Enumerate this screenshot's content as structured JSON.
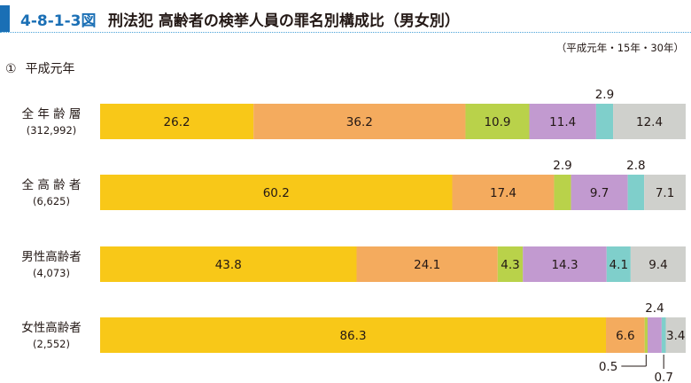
{
  "header": {
    "figure_number": "4-8-1-3図",
    "title": "刑法犯 高齢者の検挙人員の罪名別構成比（男女別）"
  },
  "note": "（平成元年・15年・30年）",
  "panel": {
    "marker": "①",
    "label": "平成元年"
  },
  "colors": {
    "accent": "#1a6fb5",
    "segments": [
      "#f8c818",
      "#f4ab5e",
      "#b9d24a",
      "#c29ad0",
      "#7fcfcb",
      "#cfd0cc"
    ]
  },
  "chart_data": {
    "type": "bar",
    "orientation": "horizontal",
    "stacked": true,
    "unit": "%",
    "categories": [
      {
        "name": "全 年 齢 層",
        "count": "(312,992)"
      },
      {
        "name": "全 高 齢 者",
        "count": "(6,625)"
      },
      {
        "name": "男性高齢者",
        "count": "(4,073)"
      },
      {
        "name": "女性高齢者",
        "count": "(2,552)"
      }
    ],
    "segment_values": [
      [
        26.2,
        36.2,
        10.9,
        11.4,
        2.9,
        12.4
      ],
      [
        60.2,
        17.4,
        2.9,
        9.7,
        2.8,
        7.1
      ],
      [
        43.8,
        24.1,
        4.3,
        14.3,
        4.1,
        9.4
      ],
      [
        86.3,
        6.6,
        0.5,
        2.4,
        0.7,
        3.4
      ]
    ],
    "segment_labels": [
      [
        "26.2",
        "36.2",
        "10.9",
        "11.4",
        "2.9",
        "12.4"
      ],
      [
        "60.2",
        "17.4",
        "2.9",
        "9.7",
        "2.8",
        "7.1"
      ],
      [
        "43.8",
        "24.1",
        "4.3",
        "14.3",
        "4.1",
        "9.4"
      ],
      [
        "86.3",
        "6.6",
        "0.5",
        "2.4",
        "0.7",
        "3.4"
      ]
    ]
  }
}
